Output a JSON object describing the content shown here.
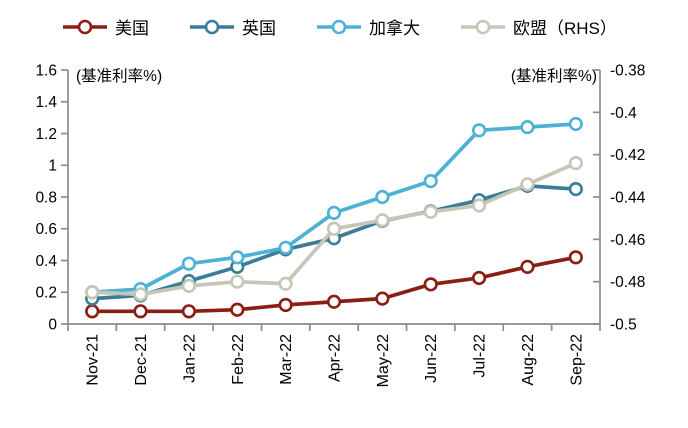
{
  "chart_data": {
    "type": "line",
    "title": "",
    "categories": [
      "Nov-21",
      "Dec-21",
      "Jan-22",
      "Feb-22",
      "Mar-22",
      "Apr-22",
      "May-22",
      "Jun-22",
      "Jul-22",
      "Aug-22",
      "Sep-22"
    ],
    "series": [
      {
        "name": "美国",
        "axis": "left",
        "color": "#8B1E14",
        "values": [
          0.08,
          0.08,
          0.08,
          0.09,
          0.12,
          0.14,
          0.16,
          0.25,
          0.29,
          0.36,
          0.42
        ]
      },
      {
        "name": "英国",
        "axis": "left",
        "color": "#3A7D96",
        "values": [
          0.16,
          0.18,
          0.27,
          0.36,
          0.47,
          0.54,
          0.65,
          0.71,
          0.78,
          0.87,
          0.85
        ]
      },
      {
        "name": "加拿大",
        "axis": "left",
        "color": "#4DB1D4",
        "values": [
          0.2,
          0.22,
          0.38,
          0.42,
          0.48,
          0.7,
          0.8,
          0.9,
          1.22,
          1.24,
          1.26
        ]
      },
      {
        "name": "欧盟（RHS）",
        "axis": "right",
        "color": "#C6C6B8",
        "values": [
          -0.485,
          -0.486,
          -0.482,
          -0.48,
          -0.481,
          -0.455,
          -0.451,
          -0.447,
          -0.444,
          -0.434,
          -0.424
        ]
      }
    ],
    "left_axis": {
      "title": "(基准利率%)",
      "min": 0,
      "max": 1.6,
      "tick_labels": [
        "1.6",
        "1.4",
        "1.2",
        "1",
        "0.8",
        "0.6",
        "0.4",
        "0.2",
        "0"
      ]
    },
    "right_axis": {
      "title": "(基准利率%)",
      "min": -0.5,
      "max": -0.38,
      "tick_labels": [
        "-0.38",
        "-0.4",
        "-0.42",
        "-0.44",
        "-0.46",
        "-0.48",
        "-0.5"
      ]
    },
    "grid": false,
    "legend_position": "top",
    "x_label_rotation": -90
  },
  "colors": {
    "axis_line": "#8C8C8C",
    "background": "#FFFFFF",
    "marker_fill": "#FFFFFF"
  }
}
